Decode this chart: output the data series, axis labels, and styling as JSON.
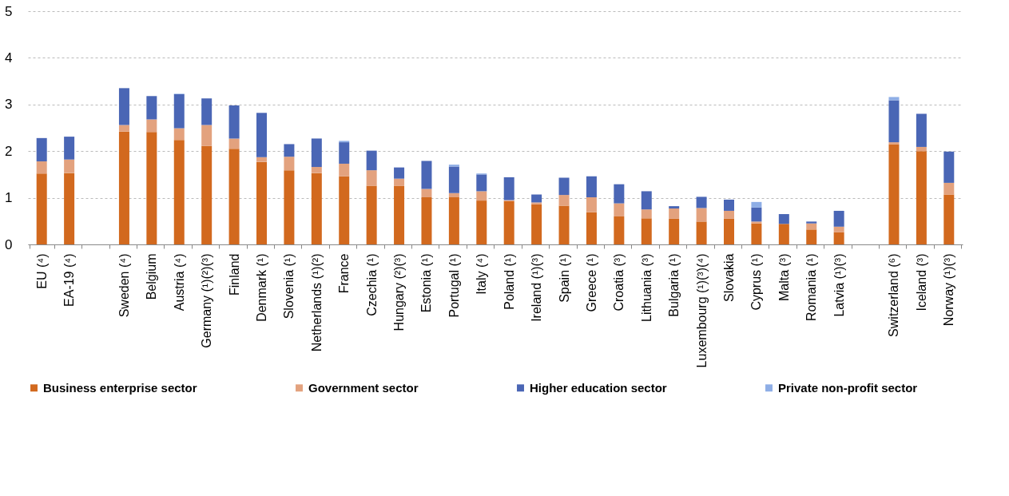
{
  "chart_data": {
    "type": "bar",
    "stacked": true,
    "grid": "y",
    "legend": "bottom",
    "categories": [
      "EU (⁴)",
      "EA-19 (⁴)",
      null,
      "Sweden (⁴)",
      "Belgium",
      "Austria (⁴)",
      "Germany (¹)(²)(³)",
      "Finland",
      "Denmark (¹)",
      "Slovenia (¹)",
      "Netherlands (¹)(²)",
      "France",
      "Czechia (¹)",
      "Hungary (²)(³)",
      "Estonia (¹)",
      "Portugal (¹)",
      "Italy (⁴)",
      "Poland (¹)",
      "Ireland (¹)(³)",
      "Spain (¹)",
      "Greece (¹)",
      "Croatia (³)",
      "Lithuania (³)",
      "Bulgaria (¹)",
      "Luxembourg (¹)(³)(⁴)",
      "Slovakia",
      "Cyprus (¹)",
      "Malta (³)",
      "Romania (¹)",
      "Latvia (¹)(³)",
      null,
      "Switzerland (⁶)",
      "Iceland (³)",
      "Norway (¹)(³)"
    ],
    "ylim": [
      0,
      5
    ],
    "yticks": [
      0,
      1,
      2,
      3,
      4,
      5
    ],
    "series": [
      {
        "name": "Business enterprise sector",
        "color": "#d2691e",
        "values": [
          1.52,
          1.53,
          null,
          2.42,
          2.41,
          2.24,
          2.11,
          2.05,
          1.77,
          1.59,
          1.53,
          1.46,
          1.26,
          1.26,
          1.01,
          1.01,
          0.94,
          0.93,
          0.86,
          0.83,
          0.69,
          0.6,
          0.56,
          0.55,
          0.49,
          0.55,
          0.45,
          0.44,
          0.32,
          0.26,
          null,
          2.15,
          2.0,
          1.07
        ]
      },
      {
        "name": "Government sector",
        "color": "#e3a27e",
        "values": [
          0.26,
          0.29,
          null,
          0.14,
          0.27,
          0.25,
          0.45,
          0.22,
          0.1,
          0.29,
          0.13,
          0.27,
          0.33,
          0.15,
          0.18,
          0.09,
          0.2,
          0.02,
          0.04,
          0.23,
          0.32,
          0.28,
          0.19,
          0.22,
          0.29,
          0.17,
          0.04,
          null,
          0.13,
          0.12,
          null,
          0.04,
          0.09,
          0.25
        ]
      },
      {
        "name": "Higher education sector",
        "color": "#4a66b5",
        "values": [
          0.5,
          0.49,
          null,
          0.79,
          0.5,
          0.73,
          0.57,
          0.71,
          0.95,
          0.27,
          0.61,
          0.46,
          0.42,
          0.24,
          0.6,
          0.57,
          0.36,
          0.49,
          0.17,
          0.37,
          0.45,
          0.41,
          0.39,
          0.05,
          0.24,
          0.24,
          0.3,
          0.21,
          0.04,
          0.34,
          null,
          0.9,
          0.71,
          0.67
        ]
      },
      {
        "name": "Private non-profit sector",
        "color": "#8eaee6",
        "values": [
          0,
          0,
          null,
          0,
          0,
          0.01,
          0,
          0,
          0,
          0,
          0,
          0.03,
          0,
          0,
          0,
          0.04,
          0.02,
          0,
          0,
          0,
          0,
          0,
          0,
          0,
          0,
          0,
          0.12,
          0,
          0,
          0,
          null,
          0.07,
          0,
          0
        ]
      }
    ]
  }
}
